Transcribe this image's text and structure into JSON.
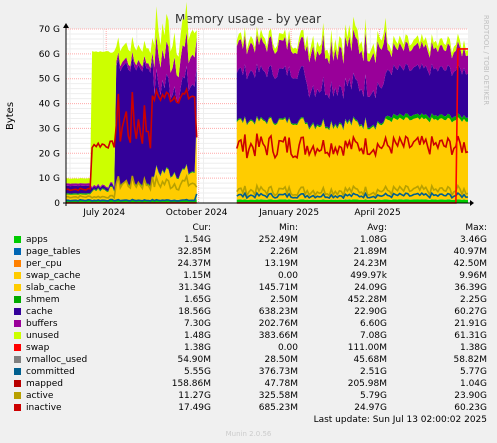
{
  "chart_data": {
    "type": "area",
    "title": "Memory usage - by year",
    "ylabel": "Bytes",
    "side_label": "RRDTOOL / TOBI OETIKER",
    "yticks": [
      "0",
      "10 G",
      "20 G",
      "30 G",
      "40 G",
      "50 G",
      "60 G",
      "70 G"
    ],
    "ylim": [
      0,
      70
    ],
    "xticks": [
      "July 2024",
      "October 2024",
      "January 2025",
      "April 2025"
    ],
    "grid": true,
    "columns": [
      "Cur:",
      "Min:",
      "Avg:",
      "Max:"
    ],
    "series": [
      {
        "name": "apps",
        "color": "#00cc00",
        "cur": "1.54G",
        "min": "252.49M",
        "avg": "1.08G",
        "max": "3.46G"
      },
      {
        "name": "page_tables",
        "color": "#0066b3",
        "cur": "32.85M",
        "min": "2.26M",
        "avg": "21.89M",
        "max": "40.97M"
      },
      {
        "name": "per_cpu",
        "color": "#ff8000",
        "cur": "24.37M",
        "min": "13.19M",
        "avg": "24.23M",
        "max": "42.50M"
      },
      {
        "name": "swap_cache",
        "color": "#ffcc00",
        "cur": "1.15M",
        "min": "0.00",
        "avg": "499.97k",
        "max": "9.96M"
      },
      {
        "name": "slab_cache",
        "color": "#ffcc00",
        "cur": "31.34G",
        "min": "145.71M",
        "avg": "24.09G",
        "max": "36.39G"
      },
      {
        "name": "shmem",
        "color": "#00aa00",
        "cur": "1.65G",
        "min": "2.50M",
        "avg": "452.28M",
        "max": "2.25G"
      },
      {
        "name": "cache",
        "color": "#330099",
        "cur": "18.56G",
        "min": "638.23M",
        "avg": "22.90G",
        "max": "60.27G"
      },
      {
        "name": "buffers",
        "color": "#990099",
        "cur": "7.30G",
        "min": "202.76M",
        "avg": "6.60G",
        "max": "21.91G"
      },
      {
        "name": "unused",
        "color": "#ccff00",
        "cur": "1.48G",
        "min": "383.66M",
        "avg": "7.08G",
        "max": "61.31G"
      },
      {
        "name": "swap",
        "color": "#ff0000",
        "cur": "1.38G",
        "min": "0.00",
        "avg": "111.00M",
        "max": "1.38G"
      },
      {
        "name": "vmalloc_used",
        "color": "#808080",
        "cur": "54.90M",
        "min": "28.50M",
        "avg": "45.68M",
        "max": "58.82M"
      },
      {
        "name": "committed",
        "color": "#005f8e",
        "cur": "5.55G",
        "min": "376.73M",
        "avg": "2.51G",
        "max": "5.77G"
      },
      {
        "name": "mapped",
        "color": "#b80000",
        "cur": "158.86M",
        "min": "47.78M",
        "avg": "205.98M",
        "max": "1.04G"
      },
      {
        "name": "active",
        "color": "#b8a000",
        "cur": "11.27G",
        "min": "325.58M",
        "avg": "5.79G",
        "max": "23.90G"
      },
      {
        "name": "inactive",
        "color": "#cc0000",
        "cur": "17.49G",
        "min": "685.23M",
        "avg": "24.97G",
        "max": "60.23G"
      }
    ],
    "last_update": "Last update:  Sun Jul 13 02:00:02 2025",
    "footer": "Munin 2.0.56"
  }
}
